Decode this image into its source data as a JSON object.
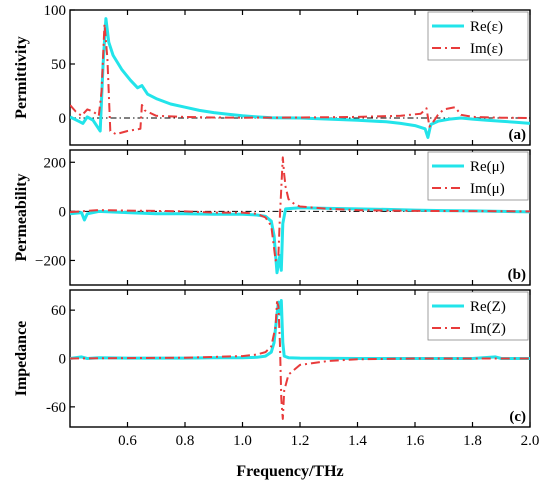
{
  "chart_data": [
    {
      "type": "line",
      "panel_label": "(a)",
      "ylabel": "Permittivity",
      "xlim": [
        0.4,
        2.0
      ],
      "ylim": [
        -25,
        100
      ],
      "yticks": [
        0,
        50,
        100
      ],
      "tick_labels": [
        "0",
        "50",
        "100"
      ],
      "legend_position": "top-right",
      "zero_reference_line": true,
      "series": [
        {
          "name": "Re(ε)",
          "color": "#22e4ea",
          "style": "solid",
          "points": [
            [
              0.4,
              1
            ],
            [
              0.43,
              -3
            ],
            [
              0.445,
              -5
            ],
            [
              0.46,
              1
            ],
            [
              0.48,
              -2
            ],
            [
              0.505,
              -12
            ],
            [
              0.515,
              50
            ],
            [
              0.525,
              92
            ],
            [
              0.535,
              70
            ],
            [
              0.55,
              58
            ],
            [
              0.58,
              45
            ],
            [
              0.61,
              35
            ],
            [
              0.635,
              28
            ],
            [
              0.65,
              30
            ],
            [
              0.67,
              22
            ],
            [
              0.7,
              18
            ],
            [
              0.75,
              13
            ],
            [
              0.8,
              10
            ],
            [
              0.85,
              7
            ],
            [
              0.9,
              5
            ],
            [
              0.95,
              3.5
            ],
            [
              1.0,
              2
            ],
            [
              1.05,
              1
            ],
            [
              1.1,
              0.3
            ],
            [
              1.2,
              0
            ],
            [
              1.3,
              -1
            ],
            [
              1.4,
              -2
            ],
            [
              1.5,
              -3.5
            ],
            [
              1.55,
              -5
            ],
            [
              1.6,
              -7
            ],
            [
              1.635,
              -10
            ],
            [
              1.645,
              -18
            ],
            [
              1.655,
              -6
            ],
            [
              1.68,
              -3
            ],
            [
              1.72,
              -1
            ],
            [
              1.76,
              0
            ],
            [
              1.8,
              -1
            ],
            [
              1.85,
              -2
            ],
            [
              1.9,
              -3
            ],
            [
              1.95,
              -4
            ],
            [
              2.0,
              -5
            ]
          ]
        },
        {
          "name": "Im(ε)",
          "color": "#e83b3b",
          "style": "dashdot",
          "points": [
            [
              0.4,
              12
            ],
            [
              0.42,
              6
            ],
            [
              0.44,
              2
            ],
            [
              0.46,
              8
            ],
            [
              0.48,
              6
            ],
            [
              0.5,
              2
            ],
            [
              0.51,
              25
            ],
            [
              0.52,
              87
            ],
            [
              0.53,
              55
            ],
            [
              0.54,
              -12
            ],
            [
              0.56,
              -15
            ],
            [
              0.6,
              -12
            ],
            [
              0.645,
              -10
            ],
            [
              0.65,
              12
            ],
            [
              0.66,
              7
            ],
            [
              0.7,
              2
            ],
            [
              0.8,
              1
            ],
            [
              0.9,
              0.5
            ],
            [
              1.0,
              0.3
            ],
            [
              1.2,
              0.5
            ],
            [
              1.4,
              1
            ],
            [
              1.55,
              2
            ],
            [
              1.62,
              4
            ],
            [
              1.64,
              9
            ],
            [
              1.65,
              -8
            ],
            [
              1.66,
              -5
            ],
            [
              1.68,
              3
            ],
            [
              1.7,
              8
            ],
            [
              1.74,
              10
            ],
            [
              1.76,
              3
            ],
            [
              1.8,
              1
            ],
            [
              1.9,
              0.3
            ],
            [
              2.0,
              0
            ]
          ]
        }
      ]
    },
    {
      "type": "line",
      "panel_label": "(b)",
      "ylabel": "Permeability",
      "xlim": [
        0.4,
        2.0
      ],
      "ylim": [
        -300,
        250
      ],
      "yticks": [
        -200,
        0,
        200
      ],
      "tick_labels": [
        "−200",
        "0",
        "200"
      ],
      "legend_position": "top-right",
      "zero_reference_line": true,
      "series": [
        {
          "name": "Re(μ)",
          "color": "#22e4ea",
          "style": "solid",
          "points": [
            [
              0.4,
              -10
            ],
            [
              0.44,
              -5
            ],
            [
              0.45,
              -35
            ],
            [
              0.46,
              -10
            ],
            [
              0.5,
              0
            ],
            [
              0.6,
              -5
            ],
            [
              0.7,
              -10
            ],
            [
              0.8,
              -10
            ],
            [
              0.9,
              -12
            ],
            [
              1.0,
              -12
            ],
            [
              1.05,
              -15
            ],
            [
              1.08,
              -20
            ],
            [
              1.1,
              -40
            ],
            [
              1.11,
              -100
            ],
            [
              1.12,
              -250
            ],
            [
              1.13,
              -180
            ],
            [
              1.135,
              -240
            ],
            [
              1.14,
              -50
            ],
            [
              1.15,
              10
            ],
            [
              1.2,
              15
            ],
            [
              1.3,
              12
            ],
            [
              1.4,
              10
            ],
            [
              1.5,
              8
            ],
            [
              1.6,
              5
            ],
            [
              1.7,
              3
            ],
            [
              1.8,
              2
            ],
            [
              1.9,
              0
            ],
            [
              2.0,
              -2
            ]
          ]
        },
        {
          "name": "Im(μ)",
          "color": "#e83b3b",
          "style": "dashdot",
          "points": [
            [
              0.4,
              -3
            ],
            [
              0.5,
              5
            ],
            [
              0.6,
              3
            ],
            [
              0.7,
              2
            ],
            [
              0.8,
              0
            ],
            [
              0.9,
              -5
            ],
            [
              1.0,
              -5
            ],
            [
              1.05,
              -10
            ],
            [
              1.08,
              -25
            ],
            [
              1.1,
              -60
            ],
            [
              1.115,
              -200
            ],
            [
              1.125,
              -180
            ],
            [
              1.13,
              -20
            ],
            [
              1.14,
              220
            ],
            [
              1.145,
              150
            ],
            [
              1.15,
              100
            ],
            [
              1.16,
              50
            ],
            [
              1.18,
              30
            ],
            [
              1.2,
              20
            ],
            [
              1.3,
              10
            ],
            [
              1.4,
              5
            ],
            [
              1.5,
              3
            ],
            [
              1.6,
              2
            ],
            [
              1.8,
              1
            ],
            [
              2.0,
              0
            ]
          ]
        }
      ]
    },
    {
      "type": "line",
      "panel_label": "(c)",
      "ylabel": "Impedance",
      "xlabel": "Frequency/THz",
      "xlim": [
        0.4,
        2.0
      ],
      "ylim": [
        -85,
        85
      ],
      "yticks": [
        -60,
        0,
        60
      ],
      "tick_labels": [
        "-60",
        "0",
        "60"
      ],
      "xticks": [
        0.6,
        0.8,
        1.0,
        1.2,
        1.4,
        1.6,
        1.8,
        2.0
      ],
      "xtick_labels": [
        "0.6",
        "0.8",
        "1.0",
        "1.2",
        "1.4",
        "1.6",
        "1.8",
        "2.0"
      ],
      "legend_position": "top-right",
      "zero_reference_line": false,
      "series": [
        {
          "name": "Re(Z)",
          "color": "#22e4ea",
          "style": "solid",
          "points": [
            [
              0.4,
              0
            ],
            [
              0.44,
              2
            ],
            [
              0.46,
              0
            ],
            [
              0.5,
              1
            ],
            [
              0.6,
              0.5
            ],
            [
              0.8,
              0.5
            ],
            [
              0.9,
              1
            ],
            [
              1.0,
              1
            ],
            [
              1.05,
              1.5
            ],
            [
              1.08,
              3
            ],
            [
              1.1,
              8
            ],
            [
              1.11,
              20
            ],
            [
              1.12,
              55
            ],
            [
              1.125,
              70
            ],
            [
              1.13,
              55
            ],
            [
              1.135,
              72
            ],
            [
              1.14,
              20
            ],
            [
              1.145,
              3
            ],
            [
              1.16,
              1
            ],
            [
              1.2,
              0.5
            ],
            [
              1.4,
              0
            ],
            [
              1.6,
              0
            ],
            [
              1.8,
              0
            ],
            [
              1.88,
              2
            ],
            [
              1.9,
              0
            ],
            [
              2.0,
              0
            ]
          ]
        },
        {
          "name": "Im(Z)",
          "color": "#e83b3b",
          "style": "dashdot",
          "points": [
            [
              0.4,
              0
            ],
            [
              0.6,
              0.5
            ],
            [
              0.8,
              1
            ],
            [
              0.9,
              2
            ],
            [
              1.0,
              3
            ],
            [
              1.05,
              5
            ],
            [
              1.08,
              8
            ],
            [
              1.1,
              15
            ],
            [
              1.115,
              40
            ],
            [
              1.12,
              70
            ],
            [
              1.125,
              65
            ],
            [
              1.13,
              20
            ],
            [
              1.135,
              -50
            ],
            [
              1.14,
              -75
            ],
            [
              1.145,
              -40
            ],
            [
              1.16,
              -20
            ],
            [
              1.2,
              -8
            ],
            [
              1.3,
              -3
            ],
            [
              1.4,
              -1
            ],
            [
              1.6,
              0
            ],
            [
              1.8,
              0
            ],
            [
              2.0,
              0
            ]
          ]
        }
      ]
    }
  ]
}
